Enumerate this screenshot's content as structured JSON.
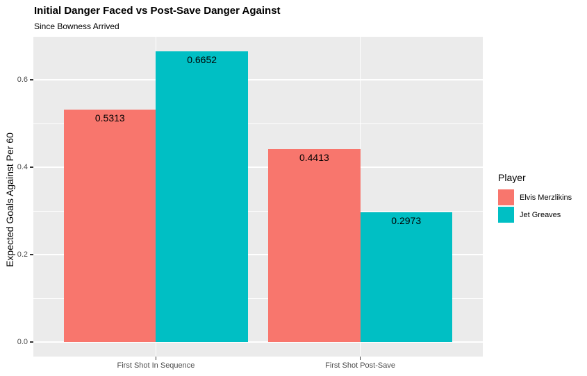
{
  "chart_data": {
    "type": "bar",
    "title": "Initial Danger Faced vs Post-Save Danger Against",
    "subtitle": "Since Bowness Arrived",
    "ylabel": "Expected Goals Against Per 60",
    "xlabel": "",
    "categories": [
      "First Shot In Sequence",
      "First Shot Post-Save"
    ],
    "series": [
      {
        "name": "Elvis Merzlikins",
        "color": "#F8766D",
        "values": [
          0.5313,
          0.4413
        ],
        "labels": [
          "0.5313",
          "0.4413"
        ]
      },
      {
        "name": "Jet Greaves",
        "color": "#00BFC4",
        "values": [
          0.6652,
          0.2973
        ],
        "labels": [
          "0.6652",
          "0.2973"
        ]
      }
    ],
    "legend": {
      "title": "Player",
      "position": "right"
    },
    "y_axis": {
      "ticks": [
        0.0,
        0.2,
        0.4,
        0.6
      ],
      "tick_labels": [
        "0.0",
        "0.2",
        "0.4",
        "0.6"
      ],
      "minor_ticks": [
        0.1,
        0.3,
        0.5
      ],
      "ylim": [
        -0.0333,
        0.6985
      ]
    },
    "style": {
      "panel_bg": "#EBEBEB",
      "grid_color": "#FFFFFF",
      "axis_text_color": "#4D4D4D",
      "tick_mark_color": "#333333",
      "grid_on": true
    }
  }
}
